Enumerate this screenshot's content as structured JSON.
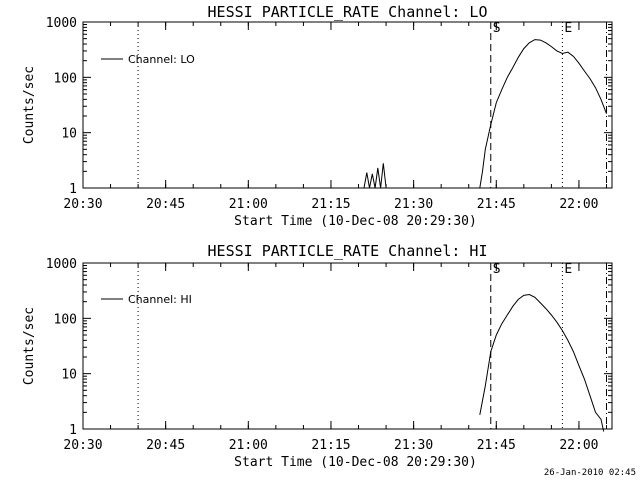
{
  "chart_data": [
    {
      "type": "line",
      "title": "HESSI PARTICLE_RATE Channel: LO",
      "xlabel": "Start Time (10-Dec-08 20:29:30)",
      "ylabel": "Counts/sec",
      "y_scale": "log",
      "ylim": [
        1,
        1000
      ],
      "xlim": [
        "20:30",
        "22:06"
      ],
      "xticks": [
        "20:30",
        "20:45",
        "21:00",
        "21:15",
        "21:30",
        "21:45",
        "22:00"
      ],
      "yticks": [
        "1",
        "10",
        "100",
        "1000"
      ],
      "legend": {
        "position": "top-left",
        "entries": [
          "Channel: LO"
        ]
      },
      "markers": [
        {
          "style": "dotted",
          "x": "20:40",
          "label": ""
        },
        {
          "style": "dashed",
          "x": "21:44",
          "label": "S"
        },
        {
          "style": "dotted",
          "x": "21:57",
          "label": "E"
        },
        {
          "style": "dash-dot",
          "x": "22:05",
          "label": ""
        }
      ],
      "series": [
        {
          "name": "Channel: LO",
          "segments": [
            [
              [
                "21:21",
                1
              ],
              [
                "21:21.5",
                1.9
              ],
              [
                "21:22",
                1
              ],
              [
                "21:22.5",
                1.8
              ],
              [
                "21:23",
                1
              ],
              [
                "21:23.5",
                2.3
              ],
              [
                "21:24",
                1
              ],
              [
                "21:24.5",
                2.8
              ],
              [
                "21:25",
                1
              ]
            ],
            [
              [
                "21:42",
                1
              ],
              [
                "21:42.5",
                2
              ],
              [
                "21:43",
                5
              ],
              [
                "21:44",
                14
              ],
              [
                "21:45",
                35
              ],
              [
                "21:46",
                60
              ],
              [
                "21:47",
                100
              ],
              [
                "21:48",
                150
              ],
              [
                "21:49",
                230
              ],
              [
                "21:50",
                330
              ],
              [
                "21:51",
                420
              ],
              [
                "21:52",
                480
              ],
              [
                "21:53",
                470
              ],
              [
                "21:54",
                420
              ],
              [
                "21:55",
                360
              ],
              [
                "21:56",
                300
              ],
              [
                "21:57",
                270
              ],
              [
                "21:58",
                285
              ],
              [
                "21:59",
                240
              ],
              [
                "22:00",
                180
              ],
              [
                "22:01",
                130
              ],
              [
                "22:02",
                95
              ],
              [
                "22:03",
                65
              ],
              [
                "22:04",
                40
              ],
              [
                "22:05",
                22
              ]
            ]
          ]
        }
      ]
    },
    {
      "type": "line",
      "title": "HESSI PARTICLE_RATE Channel: HI",
      "xlabel": "Start Time (10-Dec-08 20:29:30)",
      "ylabel": "Counts/sec",
      "y_scale": "log",
      "ylim": [
        1,
        1000
      ],
      "xlim": [
        "20:30",
        "22:06"
      ],
      "xticks": [
        "20:30",
        "20:45",
        "21:00",
        "21:15",
        "21:30",
        "21:45",
        "22:00"
      ],
      "yticks": [
        "1",
        "10",
        "100",
        "1000"
      ],
      "legend": {
        "position": "top-left",
        "entries": [
          "Channel: HI"
        ]
      },
      "markers": [
        {
          "style": "dotted",
          "x": "20:40",
          "label": ""
        },
        {
          "style": "dashed",
          "x": "21:44",
          "label": "S"
        },
        {
          "style": "dotted",
          "x": "21:57",
          "label": "E"
        },
        {
          "style": "dash-dot",
          "x": "22:05",
          "label": ""
        }
      ],
      "series": [
        {
          "name": "Channel: HI",
          "segments": [
            [
              [
                "21:42",
                1.8
              ],
              [
                "21:43",
                6
              ],
              [
                "21:44",
                25
              ],
              [
                "21:45",
                50
              ],
              [
                "21:46",
                80
              ],
              [
                "21:47",
                115
              ],
              [
                "21:48",
                165
              ],
              [
                "21:49",
                220
              ],
              [
                "21:50",
                260
              ],
              [
                "21:51",
                270
              ],
              [
                "21:52",
                240
              ],
              [
                "21:53",
                190
              ],
              [
                "21:54",
                150
              ],
              [
                "21:55",
                115
              ],
              [
                "21:56",
                85
              ],
              [
                "21:57",
                60
              ],
              [
                "21:58",
                40
              ],
              [
                "21:59",
                25
              ],
              [
                "22:00",
                14
              ],
              [
                "22:01",
                8
              ],
              [
                "22:02",
                4
              ],
              [
                "22:03",
                2
              ],
              [
                "22:04",
                1.5
              ],
              [
                "22:04.5",
                0.9
              ]
            ]
          ]
        }
      ]
    }
  ],
  "footer": {
    "timestamp": "26-Jan-2010 02:45"
  }
}
